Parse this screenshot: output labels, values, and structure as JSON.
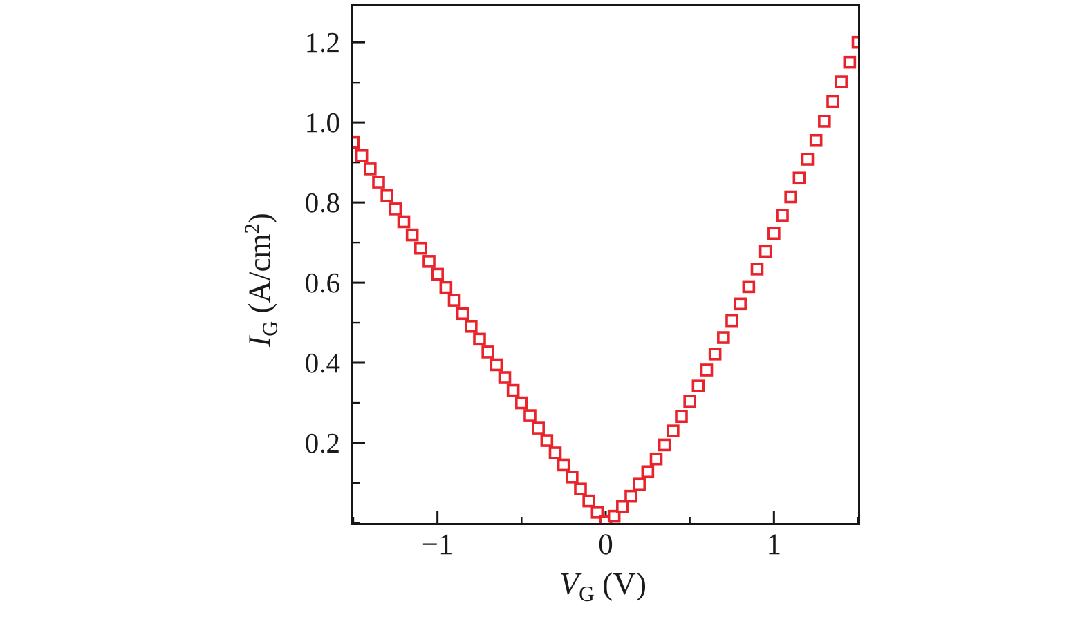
{
  "figure": {
    "background": "#ffffff",
    "axis_color": "#161616",
    "marker_color": "#e8232b",
    "marker_fill": "#ffffff"
  },
  "labels": {
    "y": {
      "symbol": "I",
      "subscript": "G",
      "units_open": " (A/cm",
      "exponent": "2",
      "units_close": ")"
    },
    "x": {
      "symbol": "V",
      "subscript": "G",
      "units": " (V)"
    }
  },
  "chart_data": {
    "type": "scatter",
    "title": "",
    "xlabel": "V_G (V)",
    "ylabel": "I_G (A/cm^2)",
    "marker": "open-square",
    "grid": false,
    "legend": null,
    "xlim": [
      -1.5,
      1.5
    ],
    "ylim": [
      0,
      1.29
    ],
    "x_ticks": [
      -1,
      0,
      1
    ],
    "x_tick_labels": [
      "−1",
      "0",
      "1"
    ],
    "x_minor_step": 0.5,
    "y_ticks": [
      0.2,
      0.4,
      0.6,
      0.8,
      1.0,
      1.2
    ],
    "y_tick_labels": [
      "0.2",
      "0.4",
      "0.6",
      "0.8",
      "1.0",
      "1.2"
    ],
    "y_minor_step": 0.1,
    "x": [
      -1.5,
      -1.45,
      -1.4,
      -1.35,
      -1.3,
      -1.25,
      -1.2,
      -1.15,
      -1.1,
      -1.05,
      -1.0,
      -0.95,
      -0.9,
      -0.85,
      -0.8,
      -0.75,
      -0.7,
      -0.65,
      -0.6,
      -0.55,
      -0.5,
      -0.45,
      -0.4,
      -0.35,
      -0.3,
      -0.25,
      -0.2,
      -0.15,
      -0.1,
      -0.05,
      0,
      0.05,
      0.1,
      0.15,
      0.2,
      0.25,
      0.3,
      0.35,
      0.4,
      0.45,
      0.5,
      0.55,
      0.6,
      0.65,
      0.7,
      0.75,
      0.8,
      0.85,
      0.9,
      0.95,
      1.0,
      1.05,
      1.1,
      1.15,
      1.2,
      1.25,
      1.3,
      1.35,
      1.4,
      1.45,
      1.5
    ],
    "y": [
      0.95,
      0.917,
      0.884,
      0.851,
      0.817,
      0.784,
      0.752,
      0.719,
      0.686,
      0.653,
      0.621,
      0.588,
      0.556,
      0.523,
      0.491,
      0.459,
      0.427,
      0.395,
      0.363,
      0.331,
      0.3,
      0.268,
      0.237,
      0.206,
      0.175,
      0.145,
      0.115,
      0.085,
      0.055,
      0.027,
      0.004,
      0.017,
      0.041,
      0.067,
      0.097,
      0.128,
      0.16,
      0.195,
      0.23,
      0.266,
      0.304,
      0.342,
      0.382,
      0.422,
      0.463,
      0.505,
      0.547,
      0.59,
      0.634,
      0.678,
      0.723,
      0.768,
      0.814,
      0.861,
      0.908,
      0.955,
      1.003,
      1.052,
      1.101,
      1.15,
      1.2
    ]
  }
}
